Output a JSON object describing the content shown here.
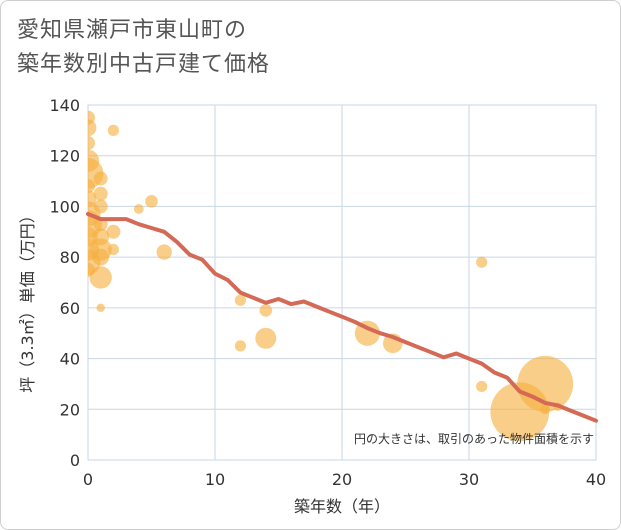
{
  "chart_data": {
    "type": "scatter",
    "title_lines": [
      "愛知県瀬戸市東山町の",
      "築年数別中古戸建て価格"
    ],
    "xlabel": "築年数（年）",
    "ylabel": "坪（3.3㎡）単価（万円）",
    "xlim": [
      0,
      40
    ],
    "ylim": [
      0,
      140
    ],
    "xticks": [
      "0",
      "10",
      "20",
      "30",
      "40"
    ],
    "yticks": [
      "0",
      "20",
      "40",
      "60",
      "80",
      "100",
      "120",
      "140"
    ],
    "grid": true,
    "note": "円の大きさは、取引のあった物件面積を示す",
    "colors": {
      "bubble": "#f5b041",
      "trend": "#d46a55",
      "grid": "#c9d6e6"
    },
    "scatter": [
      {
        "x": 0,
        "y": 135,
        "size": 1.0
      },
      {
        "x": 0,
        "y": 131,
        "size": 1.2
      },
      {
        "x": 0,
        "y": 125,
        "size": 1.0
      },
      {
        "x": 0,
        "y": 118,
        "size": 1.6
      },
      {
        "x": 0,
        "y": 113,
        "size": 2.2
      },
      {
        "x": 0,
        "y": 108,
        "size": 1.0
      },
      {
        "x": 0,
        "y": 103,
        "size": 1.2
      },
      {
        "x": 0,
        "y": 97,
        "size": 1.8
      },
      {
        "x": 0,
        "y": 93,
        "size": 2.0
      },
      {
        "x": 0,
        "y": 88,
        "size": 1.4
      },
      {
        "x": 0,
        "y": 83,
        "size": 1.6
      },
      {
        "x": 0,
        "y": 78,
        "size": 1.8
      },
      {
        "x": 0,
        "y": 75,
        "size": 1.0
      },
      {
        "x": 1,
        "y": 111,
        "size": 1.0
      },
      {
        "x": 1,
        "y": 105,
        "size": 1.0
      },
      {
        "x": 1,
        "y": 100,
        "size": 1.0
      },
      {
        "x": 1,
        "y": 93,
        "size": 1.0
      },
      {
        "x": 1,
        "y": 88,
        "size": 1.2
      },
      {
        "x": 1,
        "y": 83,
        "size": 1.6
      },
      {
        "x": 1,
        "y": 80,
        "size": 1.2
      },
      {
        "x": 1,
        "y": 72,
        "size": 1.6
      },
      {
        "x": 1,
        "y": 60,
        "size": 0.6
      },
      {
        "x": 2,
        "y": 130,
        "size": 0.8
      },
      {
        "x": 2,
        "y": 90,
        "size": 1.0
      },
      {
        "x": 2,
        "y": 83,
        "size": 0.8
      },
      {
        "x": 4,
        "y": 99,
        "size": 0.7
      },
      {
        "x": 5,
        "y": 102,
        "size": 0.9
      },
      {
        "x": 6,
        "y": 82,
        "size": 1.1
      },
      {
        "x": 12,
        "y": 63,
        "size": 0.8
      },
      {
        "x": 12,
        "y": 45,
        "size": 0.8
      },
      {
        "x": 14,
        "y": 59,
        "size": 0.9
      },
      {
        "x": 14,
        "y": 48,
        "size": 1.5
      },
      {
        "x": 22,
        "y": 50,
        "size": 1.8
      },
      {
        "x": 24,
        "y": 46,
        "size": 1.4
      },
      {
        "x": 31,
        "y": 78,
        "size": 0.8
      },
      {
        "x": 31,
        "y": 29,
        "size": 0.8
      },
      {
        "x": 34,
        "y": 19,
        "size": 4.2
      },
      {
        "x": 36,
        "y": 30,
        "size": 4.0
      },
      {
        "x": 36,
        "y": 20,
        "size": 0.7
      },
      {
        "x": 37,
        "y": 21,
        "size": 0.6
      }
    ],
    "trend": [
      {
        "x": 0,
        "y": 97
      },
      {
        "x": 1,
        "y": 95
      },
      {
        "x": 2,
        "y": 95
      },
      {
        "x": 3,
        "y": 95
      },
      {
        "x": 4,
        "y": 93
      },
      {
        "x": 5,
        "y": 91.5
      },
      {
        "x": 6,
        "y": 90
      },
      {
        "x": 7,
        "y": 86
      },
      {
        "x": 8,
        "y": 81
      },
      {
        "x": 9,
        "y": 79
      },
      {
        "x": 10,
        "y": 73.5
      },
      {
        "x": 11,
        "y": 71
      },
      {
        "x": 12,
        "y": 66
      },
      {
        "x": 13,
        "y": 64
      },
      {
        "x": 14,
        "y": 62
      },
      {
        "x": 15,
        "y": 63.5
      },
      {
        "x": 16,
        "y": 61.5
      },
      {
        "x": 17,
        "y": 62.5
      },
      {
        "x": 18,
        "y": 60.5
      },
      {
        "x": 19,
        "y": 58.5
      },
      {
        "x": 20,
        "y": 56.5
      },
      {
        "x": 21,
        "y": 54.5
      },
      {
        "x": 22,
        "y": 52
      },
      {
        "x": 23,
        "y": 50
      },
      {
        "x": 24,
        "y": 48.5
      },
      {
        "x": 25,
        "y": 46.5
      },
      {
        "x": 26,
        "y": 44.5
      },
      {
        "x": 27,
        "y": 42.5
      },
      {
        "x": 28,
        "y": 40.5
      },
      {
        "x": 29,
        "y": 42
      },
      {
        "x": 30,
        "y": 40
      },
      {
        "x": 31,
        "y": 38
      },
      {
        "x": 32,
        "y": 34.5
      },
      {
        "x": 33,
        "y": 32.5
      },
      {
        "x": 34,
        "y": 27
      },
      {
        "x": 35,
        "y": 25
      },
      {
        "x": 36,
        "y": 22.5
      },
      {
        "x": 37,
        "y": 21.5
      },
      {
        "x": 38,
        "y": 19.5
      },
      {
        "x": 39,
        "y": 17.5
      },
      {
        "x": 40,
        "y": 15.5
      }
    ]
  }
}
